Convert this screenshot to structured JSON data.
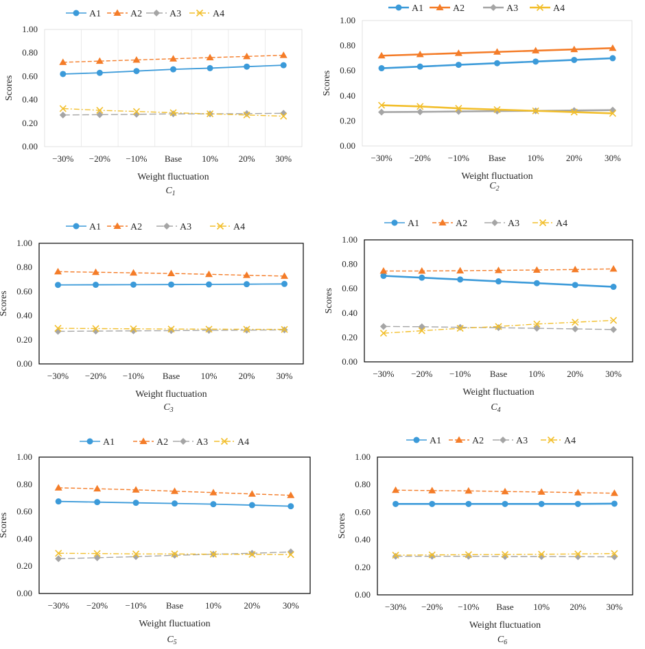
{
  "series_styles": [
    {
      "name": "A1",
      "color": "#3B9AD9",
      "marker": "circle",
      "dash": "solid"
    },
    {
      "name": "A2",
      "color": "#F47C28",
      "marker": "triangle",
      "dash": "dashed"
    },
    {
      "name": "A3",
      "color": "#A5A5A5",
      "marker": "diamond",
      "dash": "longdash"
    },
    {
      "name": "A4",
      "color": "#F2BE2A",
      "marker": "x",
      "dash": "dashdot"
    }
  ],
  "chart_data": [
    {
      "type": "line",
      "caption_main": "C",
      "caption_sub": "1",
      "xlabel": "Weight fluctuation",
      "ylabel": "Scores",
      "categories": [
        "−30%",
        "−20%",
        "−10%",
        "Base",
        "10%",
        "20%",
        "30%"
      ],
      "ylim": [
        0,
        1
      ],
      "yticks": [
        "0.00",
        "0.20",
        "0.40",
        "0.60",
        "0.80",
        "1.00"
      ],
      "grid": true,
      "legend": "top",
      "series": [
        {
          "name": "A1",
          "values": [
            0.62,
            0.63,
            0.645,
            0.66,
            0.67,
            0.683,
            0.695
          ]
        },
        {
          "name": "A2",
          "values": [
            0.72,
            0.73,
            0.74,
            0.75,
            0.76,
            0.77,
            0.78
          ]
        },
        {
          "name": "A3",
          "values": [
            0.27,
            0.273,
            0.276,
            0.28,
            0.28,
            0.282,
            0.285
          ]
        },
        {
          "name": "A4",
          "values": [
            0.325,
            0.31,
            0.3,
            0.29,
            0.28,
            0.27,
            0.26
          ]
        }
      ]
    },
    {
      "type": "line",
      "caption_main": "C",
      "caption_sub": "2",
      "xlabel": "Weight fluctuation",
      "ylabel": "Scores",
      "categories": [
        "−30%",
        "−20%",
        "−10%",
        "Base",
        "10%",
        "20%",
        "30%"
      ],
      "ylim": [
        0,
        1
      ],
      "yticks": [
        "0.00",
        "0.20",
        "0.40",
        "0.60",
        "0.80",
        "1.00"
      ],
      "grid": false,
      "legend": "top",
      "series": [
        {
          "name": "A1",
          "values": [
            0.62,
            0.633,
            0.647,
            0.66,
            0.673,
            0.686,
            0.7
          ]
        },
        {
          "name": "A2",
          "values": [
            0.72,
            0.73,
            0.74,
            0.75,
            0.76,
            0.77,
            0.78
          ]
        },
        {
          "name": "A3",
          "values": [
            0.27,
            0.272,
            0.275,
            0.278,
            0.28,
            0.283,
            0.286
          ]
        },
        {
          "name": "A4",
          "values": [
            0.325,
            0.315,
            0.3,
            0.29,
            0.28,
            0.27,
            0.26
          ]
        }
      ]
    },
    {
      "type": "line",
      "caption_main": "C",
      "caption_sub": "3",
      "xlabel": "Weight fluctuation",
      "ylabel": "Scores",
      "categories": [
        "−30%",
        "−20%",
        "−10%",
        "Base",
        "10%",
        "20%",
        "30%"
      ],
      "ylim": [
        0,
        1
      ],
      "yticks": [
        "0.00",
        "0.20",
        "0.40",
        "0.60",
        "0.80",
        "1.00"
      ],
      "grid": false,
      "legend": "top",
      "series": [
        {
          "name": "A1",
          "values": [
            0.655,
            0.656,
            0.657,
            0.658,
            0.659,
            0.661,
            0.663
          ]
        },
        {
          "name": "A2",
          "values": [
            0.765,
            0.76,
            0.755,
            0.75,
            0.743,
            0.735,
            0.728
          ]
        },
        {
          "name": "A3",
          "values": [
            0.27,
            0.272,
            0.274,
            0.276,
            0.278,
            0.28,
            0.282
          ]
        },
        {
          "name": "A4",
          "values": [
            0.295,
            0.293,
            0.291,
            0.289,
            0.288,
            0.287,
            0.286
          ]
        }
      ]
    },
    {
      "type": "line",
      "caption_main": "C",
      "caption_sub": "4",
      "xlabel": "Weight fluctuation",
      "ylabel": "Scores",
      "categories": [
        "−30%",
        "−20%",
        "−10%",
        "Base",
        "10%",
        "20%",
        "30%"
      ],
      "ylim": [
        0,
        1
      ],
      "yticks": [
        "0.00",
        "0.20",
        "0.40",
        "0.60",
        "0.80",
        "1.00"
      ],
      "grid": false,
      "legend": "top",
      "series": [
        {
          "name": "A1",
          "values": [
            0.705,
            0.69,
            0.675,
            0.66,
            0.645,
            0.63,
            0.615
          ]
        },
        {
          "name": "A2",
          "values": [
            0.745,
            0.745,
            0.747,
            0.75,
            0.753,
            0.757,
            0.762
          ]
        },
        {
          "name": "A3",
          "values": [
            0.29,
            0.288,
            0.283,
            0.28,
            0.275,
            0.27,
            0.265
          ]
        },
        {
          "name": "A4",
          "values": [
            0.235,
            0.255,
            0.275,
            0.29,
            0.31,
            0.325,
            0.34
          ]
        }
      ]
    },
    {
      "type": "line",
      "caption_main": "C",
      "caption_sub": "5",
      "xlabel": "Weight fluctuation",
      "ylabel": "Scores",
      "categories": [
        "−30%",
        "−20%",
        "−10%",
        "Base",
        "10%",
        "20%",
        "30%"
      ],
      "ylim": [
        0,
        1
      ],
      "yticks": [
        "0.00",
        "0.20",
        "0.40",
        "0.60",
        "0.80",
        "1.00"
      ],
      "grid": false,
      "legend": "top",
      "series": [
        {
          "name": "A1",
          "values": [
            0.675,
            0.67,
            0.665,
            0.66,
            0.655,
            0.648,
            0.64
          ]
        },
        {
          "name": "A2",
          "values": [
            0.775,
            0.768,
            0.76,
            0.75,
            0.74,
            0.73,
            0.72
          ]
        },
        {
          "name": "A3",
          "values": [
            0.255,
            0.262,
            0.27,
            0.28,
            0.288,
            0.295,
            0.305
          ]
        },
        {
          "name": "A4",
          "values": [
            0.295,
            0.293,
            0.29,
            0.29,
            0.288,
            0.287,
            0.285
          ]
        }
      ]
    },
    {
      "type": "line",
      "caption_main": "C",
      "caption_sub": "6",
      "xlabel": "Weight fluctuation",
      "ylabel": "Scores",
      "categories": [
        "−30%",
        "−20%",
        "−10%",
        "Base",
        "10%",
        "20%",
        "30%"
      ],
      "ylim": [
        0,
        1
      ],
      "yticks": [
        "0.00",
        "0.20",
        "0.40",
        "0.60",
        "0.80",
        "1.00"
      ],
      "grid": false,
      "legend": "top",
      "series": [
        {
          "name": "A1",
          "values": [
            0.66,
            0.66,
            0.66,
            0.66,
            0.66,
            0.66,
            0.662
          ]
        },
        {
          "name": "A2",
          "values": [
            0.76,
            0.757,
            0.755,
            0.75,
            0.747,
            0.742,
            0.738
          ]
        },
        {
          "name": "A3",
          "values": [
            0.28,
            0.28,
            0.28,
            0.278,
            0.278,
            0.277,
            0.276
          ]
        },
        {
          "name": "A4",
          "values": [
            0.288,
            0.29,
            0.292,
            0.293,
            0.295,
            0.297,
            0.3
          ]
        }
      ]
    }
  ]
}
